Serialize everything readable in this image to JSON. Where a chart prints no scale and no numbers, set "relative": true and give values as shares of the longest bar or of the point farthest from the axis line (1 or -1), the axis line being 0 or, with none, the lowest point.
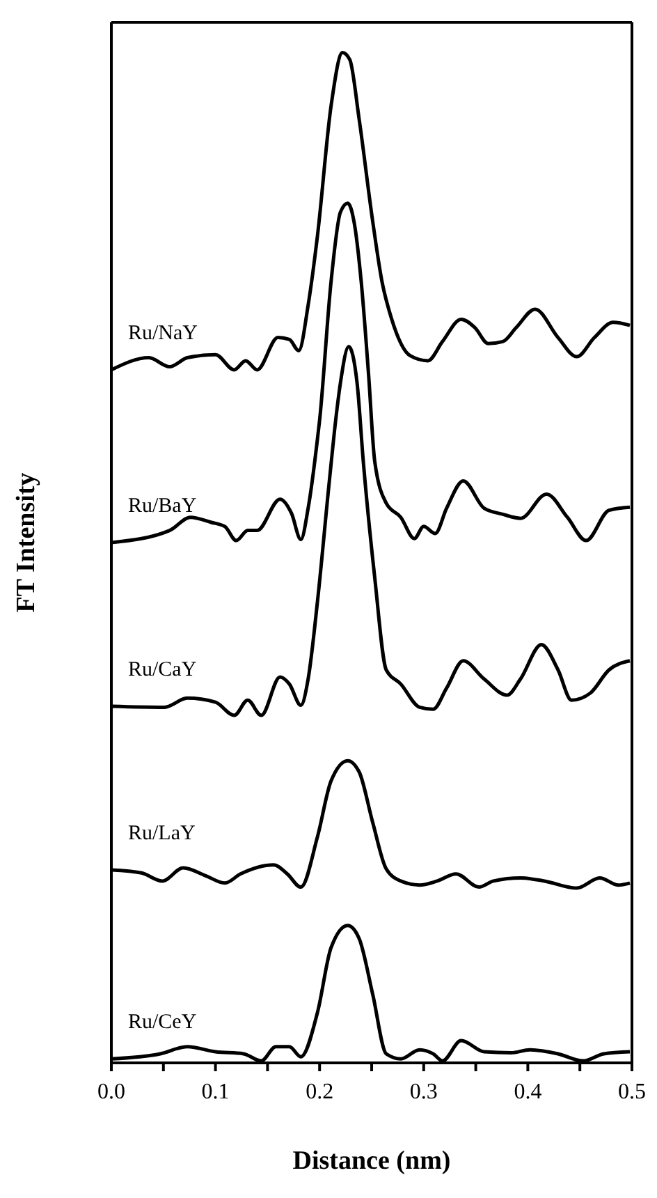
{
  "chart_data": {
    "type": "line",
    "xlabel": "Distance (nm)",
    "ylabel": "FT Intensity",
    "relative": true,
    "marker": "none",
    "line_style": "solid",
    "xlim": [
      0,
      0.5
    ],
    "xticks": [
      {
        "value": 0,
        "label": "0.0"
      },
      {
        "value": 0.05,
        "label": null
      },
      {
        "value": 0.1,
        "label": "0.1"
      },
      {
        "value": 0.15,
        "label": null
      },
      {
        "value": 0.2,
        "label": "0.2"
      },
      {
        "value": 0.25,
        "label": null
      },
      {
        "value": 0.3,
        "label": "0.3"
      },
      {
        "value": 0.35,
        "label": null
      },
      {
        "value": 0.4,
        "label": "0.4"
      },
      {
        "value": 0.45,
        "label": null
      },
      {
        "value": 0.5,
        "label": "0.5"
      }
    ],
    "series": [
      {
        "name": "Ru/NaY",
        "color": "#000000",
        "x": [
          0,
          0.036,
          0.056,
          0.073,
          0.1,
          0.118,
          0.129,
          0.14,
          0.16,
          0.171,
          0.18,
          0.189,
          0.198,
          0.211,
          0.222,
          0.229,
          0.238,
          0.251,
          0.26,
          0.269,
          0.287,
          0.304,
          0.318,
          0.336,
          0.349,
          0.362,
          0.376,
          0.389,
          0.407,
          0.429,
          0.447,
          0.464,
          0.482,
          0.498
        ],
        "values": [
          0.686,
          0.698,
          0.689,
          0.698,
          0.701,
          0.686,
          0.695,
          0.686,
          0.718,
          0.716,
          0.705,
          0.75,
          0.819,
          0.947,
          1.0,
          0.993,
          0.934,
          0.833,
          0.773,
          0.737,
          0.7,
          0.695,
          0.714,
          0.736,
          0.728,
          0.712,
          0.714,
          0.728,
          0.746,
          0.718,
          0.699,
          0.718,
          0.733,
          0.73
        ]
      },
      {
        "name": "Ru/BaY",
        "color": "#000000",
        "x": [
          0,
          0.056,
          0.076,
          0.096,
          0.109,
          0.12,
          0.131,
          0.14,
          0.162,
          0.173,
          0.182,
          0.189,
          0.198,
          0.2,
          0.211,
          0.22,
          0.227,
          0.233,
          0.24,
          0.247,
          0.253,
          0.264,
          0.278,
          0.291,
          0.3,
          0.311,
          0.322,
          0.338,
          0.358,
          0.376,
          0.393,
          0.418,
          0.438,
          0.456,
          0.478,
          0.498
        ],
        "values": [
          0.515,
          0.527,
          0.54,
          0.535,
          0.531,
          0.517,
          0.527,
          0.527,
          0.558,
          0.544,
          0.518,
          0.549,
          0.618,
          0.636,
          0.773,
          0.842,
          0.851,
          0.833,
          0.773,
          0.682,
          0.595,
          0.554,
          0.54,
          0.519,
          0.531,
          0.524,
          0.549,
          0.576,
          0.549,
          0.543,
          0.539,
          0.563,
          0.54,
          0.517,
          0.547,
          0.55
        ]
      },
      {
        "name": "Ru/CaY",
        "color": "#000000",
        "x": [
          0,
          0.051,
          0.073,
          0.1,
          0.118,
          0.131,
          0.144,
          0.162,
          0.171,
          0.182,
          0.189,
          0.198,
          0.209,
          0.216,
          0.22,
          0.228,
          0.236,
          0.242,
          0.253,
          0.264,
          0.278,
          0.296,
          0.309,
          0.322,
          0.338,
          0.358,
          0.38,
          0.393,
          0.413,
          0.429,
          0.442,
          0.46,
          0.478,
          0.498
        ],
        "values": [
          0.353,
          0.352,
          0.361,
          0.357,
          0.344,
          0.359,
          0.344,
          0.382,
          0.375,
          0.354,
          0.38,
          0.457,
          0.572,
          0.641,
          0.673,
          0.709,
          0.673,
          0.595,
          0.48,
          0.389,
          0.375,
          0.352,
          0.35,
          0.371,
          0.398,
          0.38,
          0.364,
          0.38,
          0.414,
          0.389,
          0.359,
          0.366,
          0.389,
          0.398
        ]
      },
      {
        "name": "Ru/LaY",
        "color": "#000000",
        "x": [
          0,
          0.029,
          0.049,
          0.069,
          0.091,
          0.109,
          0.124,
          0.156,
          0.169,
          0.182,
          0.198,
          0.211,
          0.227,
          0.238,
          0.251,
          0.264,
          0.278,
          0.296,
          0.313,
          0.331,
          0.353,
          0.367,
          0.393,
          0.416,
          0.447,
          0.469,
          0.487,
          0.498
        ],
        "values": [
          0.191,
          0.188,
          0.18,
          0.193,
          0.185,
          0.178,
          0.187,
          0.196,
          0.187,
          0.174,
          0.224,
          0.279,
          0.299,
          0.288,
          0.238,
          0.192,
          0.18,
          0.176,
          0.18,
          0.187,
          0.174,
          0.18,
          0.183,
          0.18,
          0.173,
          0.183,
          0.176,
          0.178
        ]
      },
      {
        "name": "Ru/CeY",
        "color": "#000000",
        "x": [
          0,
          0.047,
          0.073,
          0.1,
          0.127,
          0.144,
          0.158,
          0.171,
          0.182,
          0.198,
          0.211,
          0.227,
          0.238,
          0.251,
          0.264,
          0.278,
          0.296,
          0.309,
          0.318,
          0.336,
          0.358,
          0.384,
          0.402,
          0.429,
          0.453,
          0.473,
          0.498
        ],
        "values": [
          0.004,
          0.009,
          0.016,
          0.011,
          0.009,
          0.002,
          0.016,
          0.016,
          0.006,
          0.05,
          0.114,
          0.136,
          0.123,
          0.068,
          0.009,
          0.004,
          0.013,
          0.009,
          0.002,
          0.022,
          0.011,
          0.01,
          0.013,
          0.009,
          0.002,
          0.009,
          0.011
        ]
      }
    ]
  }
}
